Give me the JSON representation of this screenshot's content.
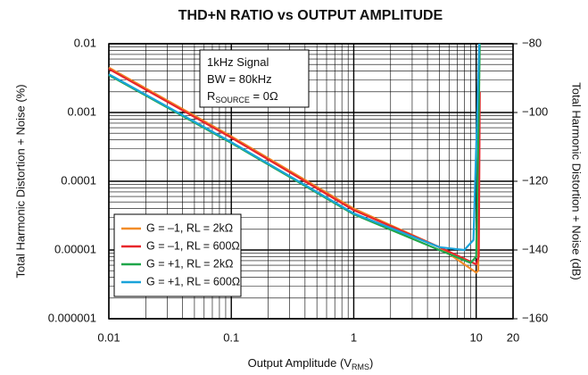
{
  "chart_data": {
    "type": "line",
    "title": "THD+N RATIO vs OUTPUT AMPLITUDE",
    "x_label": {
      "text": "Output Amplitude (V",
      "sub": "RMS",
      "rest": ")"
    },
    "y_label": "Total Harmonic Distortion + Noise (%)",
    "y2_label": "Total Harmonic Distortion + Noise (dB)",
    "x_scale": "log",
    "y_scale": "log",
    "grid": true,
    "legend_position": "lower left",
    "xlim": [
      0.01,
      20
    ],
    "xticks": [
      0.01,
      0.1,
      1,
      10,
      20
    ],
    "ylim": [
      1e-06,
      0.01
    ],
    "yticks": [
      1e-06,
      1e-05,
      0.0001,
      0.001,
      0.01
    ],
    "y2lim": [
      -160,
      -80
    ],
    "y2ticks": [
      {
        "value": -160,
        "label": "−160"
      },
      {
        "value": -140,
        "label": "−140"
      },
      {
        "value": -120,
        "label": "−120"
      },
      {
        "value": -100,
        "label": "−100"
      },
      {
        "value": -80,
        "label": "−80"
      }
    ],
    "annotations": [
      {
        "text": "1kHz Signal"
      },
      {
        "text": "BW = 80kHz"
      },
      {
        "text": "R",
        "sub": "SOURCE",
        "rest": " = 0Ω"
      }
    ],
    "series": [
      {
        "name": "G = –1, RL = 2kΩ",
        "color": "#f28c28",
        "x": [
          0.01,
          0.1,
          1,
          5,
          10,
          10.4,
          10.6
        ],
        "values": [
          0.0045,
          0.00045,
          4e-05,
          1.1e-05,
          4.7e-06,
          5e-06,
          0.002
        ]
      },
      {
        "name": "G = –1, RL = 600Ω",
        "color": "#e8262b",
        "x": [
          0.01,
          0.1,
          1,
          5,
          10,
          10.5,
          10.7
        ],
        "values": [
          0.0043,
          0.00043,
          3.8e-05,
          1.1e-05,
          6.2e-06,
          8e-06,
          0.002
        ]
      },
      {
        "name": "G = +1, RL = 2kΩ",
        "color": "#1fa64a",
        "x": [
          0.01,
          0.1,
          1,
          5,
          9,
          10,
          10.5,
          10.7
        ],
        "values": [
          0.0035,
          0.00036,
          3.3e-05,
          1e-05,
          6.5e-06,
          8e-06,
          0.001,
          0.01
        ]
      },
      {
        "name": "G = +1, RL = 600Ω",
        "color": "#1aa3d9",
        "x": [
          0.01,
          0.1,
          1,
          5,
          8,
          9.5,
          10.2,
          10.6
        ],
        "values": [
          0.0036,
          0.00037,
          3.4e-05,
          1.1e-05,
          1e-05,
          1.4e-05,
          0.001,
          0.01
        ]
      }
    ]
  }
}
